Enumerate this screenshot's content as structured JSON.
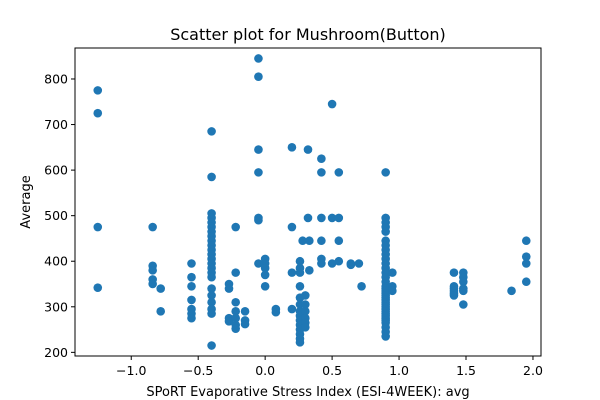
{
  "chart_data": {
    "type": "scatter",
    "title": "Scatter plot for Mushroom(Button)",
    "xlabel": "SPoRT Evaporative Stress Index (ESI-4WEEK): avg",
    "ylabel": "Average",
    "xlim": [
      -1.42,
      2.06
    ],
    "ylim": [
      192,
      868
    ],
    "x_ticks": [
      -1.0,
      -0.5,
      0.0,
      0.5,
      1.0,
      1.5,
      2.0
    ],
    "x_tick_labels": [
      "−1.0",
      "−0.5",
      "0.0",
      "0.5",
      "1.0",
      "1.5",
      "2.0"
    ],
    "y_ticks": [
      200,
      300,
      400,
      500,
      600,
      700,
      800
    ],
    "y_tick_labels": [
      "200",
      "300",
      "400",
      "500",
      "600",
      "700",
      "800"
    ],
    "grid": false,
    "legend": "none",
    "color": "#1f77b4",
    "points": [
      [
        -1.25,
        775
      ],
      [
        -1.25,
        725
      ],
      [
        -1.25,
        475
      ],
      [
        -1.25,
        342
      ],
      [
        -0.84,
        475
      ],
      [
        -0.84,
        390
      ],
      [
        -0.84,
        380
      ],
      [
        -0.84,
        360
      ],
      [
        -0.84,
        350
      ],
      [
        -0.78,
        340
      ],
      [
        -0.78,
        290
      ],
      [
        -0.55,
        395
      ],
      [
        -0.55,
        365
      ],
      [
        -0.55,
        345
      ],
      [
        -0.55,
        315
      ],
      [
        -0.55,
        295
      ],
      [
        -0.55,
        285
      ],
      [
        -0.55,
        275
      ],
      [
        -0.4,
        685
      ],
      [
        -0.4,
        585
      ],
      [
        -0.4,
        505
      ],
      [
        -0.4,
        495
      ],
      [
        -0.4,
        485
      ],
      [
        -0.4,
        475
      ],
      [
        -0.4,
        465
      ],
      [
        -0.4,
        455
      ],
      [
        -0.4,
        445
      ],
      [
        -0.4,
        435
      ],
      [
        -0.4,
        425
      ],
      [
        -0.4,
        415
      ],
      [
        -0.4,
        405
      ],
      [
        -0.4,
        395
      ],
      [
        -0.4,
        385
      ],
      [
        -0.4,
        375
      ],
      [
        -0.4,
        365
      ],
      [
        -0.4,
        340
      ],
      [
        -0.4,
        325
      ],
      [
        -0.4,
        310
      ],
      [
        -0.4,
        295
      ],
      [
        -0.4,
        285
      ],
      [
        -0.4,
        215
      ],
      [
        -0.27,
        350
      ],
      [
        -0.27,
        340
      ],
      [
        -0.27,
        275
      ],
      [
        -0.27,
        268
      ],
      [
        -0.22,
        475
      ],
      [
        -0.22,
        375
      ],
      [
        -0.22,
        310
      ],
      [
        -0.22,
        290
      ],
      [
        -0.22,
        275
      ],
      [
        -0.22,
        260
      ],
      [
        -0.22,
        252
      ],
      [
        -0.15,
        290
      ],
      [
        -0.15,
        270
      ],
      [
        -0.15,
        262
      ],
      [
        -0.05,
        845
      ],
      [
        -0.05,
        805
      ],
      [
        -0.05,
        645
      ],
      [
        -0.05,
        595
      ],
      [
        -0.05,
        495
      ],
      [
        -0.05,
        490
      ],
      [
        -0.05,
        395
      ],
      [
        0.0,
        405
      ],
      [
        0.0,
        395
      ],
      [
        0.0,
        385
      ],
      [
        0.0,
        370
      ],
      [
        0.0,
        345
      ],
      [
        0.08,
        295
      ],
      [
        0.08,
        288
      ],
      [
        0.2,
        650
      ],
      [
        0.2,
        475
      ],
      [
        0.2,
        375
      ],
      [
        0.2,
        295
      ],
      [
        0.26,
        400
      ],
      [
        0.26,
        385
      ],
      [
        0.26,
        375
      ],
      [
        0.26,
        345
      ],
      [
        0.26,
        320
      ],
      [
        0.26,
        305
      ],
      [
        0.26,
        290
      ],
      [
        0.26,
        280
      ],
      [
        0.26,
        270
      ],
      [
        0.26,
        260
      ],
      [
        0.26,
        250
      ],
      [
        0.26,
        240
      ],
      [
        0.26,
        230
      ],
      [
        0.26,
        222
      ],
      [
        0.28,
        445
      ],
      [
        0.3,
        325
      ],
      [
        0.3,
        305
      ],
      [
        0.3,
        290
      ],
      [
        0.3,
        275
      ],
      [
        0.3,
        265
      ],
      [
        0.3,
        255
      ],
      [
        0.32,
        645
      ],
      [
        0.32,
        495
      ],
      [
        0.33,
        445
      ],
      [
        0.33,
        380
      ],
      [
        0.42,
        625
      ],
      [
        0.42,
        595
      ],
      [
        0.42,
        495
      ],
      [
        0.42,
        445
      ],
      [
        0.42,
        405
      ],
      [
        0.42,
        395
      ],
      [
        0.5,
        745
      ],
      [
        0.5,
        495
      ],
      [
        0.5,
        395
      ],
      [
        0.55,
        595
      ],
      [
        0.55,
        495
      ],
      [
        0.55,
        445
      ],
      [
        0.55,
        400
      ],
      [
        0.64,
        395
      ],
      [
        0.64,
        392
      ],
      [
        0.7,
        395
      ],
      [
        0.72,
        345
      ],
      [
        0.9,
        595
      ],
      [
        0.9,
        495
      ],
      [
        0.9,
        485
      ],
      [
        0.9,
        475
      ],
      [
        0.9,
        465
      ],
      [
        0.9,
        445
      ],
      [
        0.9,
        435
      ],
      [
        0.9,
        425
      ],
      [
        0.9,
        415
      ],
      [
        0.9,
        405
      ],
      [
        0.9,
        395
      ],
      [
        0.9,
        385
      ],
      [
        0.9,
        375
      ],
      [
        0.9,
        365
      ],
      [
        0.9,
        355
      ],
      [
        0.9,
        345
      ],
      [
        0.9,
        340
      ],
      [
        0.9,
        335
      ],
      [
        0.9,
        330
      ],
      [
        0.9,
        325
      ],
      [
        0.9,
        320
      ],
      [
        0.9,
        315
      ],
      [
        0.9,
        310
      ],
      [
        0.9,
        305
      ],
      [
        0.9,
        300
      ],
      [
        0.9,
        295
      ],
      [
        0.9,
        290
      ],
      [
        0.9,
        285
      ],
      [
        0.9,
        280
      ],
      [
        0.9,
        275
      ],
      [
        0.9,
        270
      ],
      [
        0.9,
        265
      ],
      [
        0.9,
        255
      ],
      [
        0.9,
        245
      ],
      [
        0.9,
        235
      ],
      [
        0.95,
        375
      ],
      [
        0.95,
        345
      ],
      [
        0.95,
        335
      ],
      [
        1.41,
        375
      ],
      [
        1.41,
        345
      ],
      [
        1.41,
        340
      ],
      [
        1.41,
        335
      ],
      [
        1.41,
        330
      ],
      [
        1.41,
        325
      ],
      [
        1.48,
        375
      ],
      [
        1.48,
        365
      ],
      [
        1.48,
        355
      ],
      [
        1.48,
        340
      ],
      [
        1.48,
        335
      ],
      [
        1.48,
        305
      ],
      [
        1.84,
        335
      ],
      [
        1.95,
        445
      ],
      [
        1.95,
        410
      ],
      [
        1.95,
        395
      ],
      [
        1.95,
        355
      ]
    ]
  }
}
